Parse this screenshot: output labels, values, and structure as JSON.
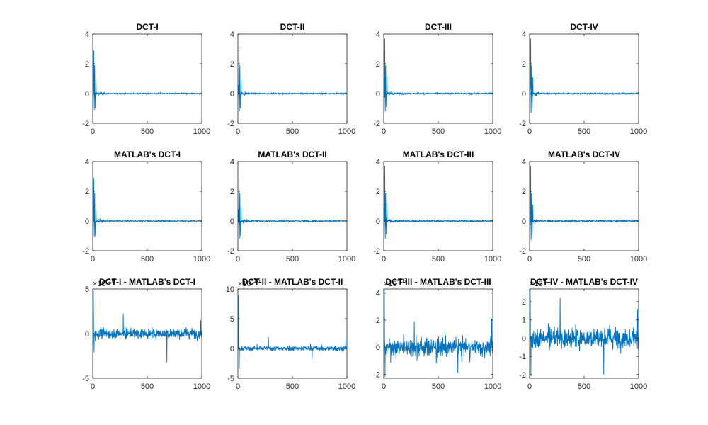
{
  "figure": {
    "background": "#ffffff"
  },
  "colors": {
    "line": "#0072bd",
    "axes": "#262626"
  },
  "chart_data": [
    {
      "type": "line",
      "title": "DCT-I",
      "xlim": [
        0,
        1000
      ],
      "ylim": [
        -2,
        4
      ],
      "xticks": [
        "0",
        "500",
        "1000"
      ],
      "yticks": [
        "-2",
        "0",
        "2",
        "4"
      ],
      "exponent": "",
      "series": [
        {
          "shape": "decay",
          "peak_values": [
            2.9,
            -1.1,
            1.9,
            -1.0,
            0.9
          ],
          "tail_amplitude": 0.05
        }
      ]
    },
    {
      "type": "line",
      "title": "DCT-II",
      "xlim": [
        0,
        1000
      ],
      "ylim": [
        -2,
        4
      ],
      "xticks": [
        "0",
        "500",
        "1000"
      ],
      "yticks": [
        "-2",
        "0",
        "2",
        "4"
      ],
      "exponent": "",
      "series": [
        {
          "shape": "decay",
          "peak_values": [
            2.9,
            -1.2,
            1.9,
            -1.0,
            0.9
          ],
          "tail_amplitude": 0.05
        }
      ]
    },
    {
      "type": "line",
      "title": "DCT-III",
      "xlim": [
        0,
        1000
      ],
      "ylim": [
        -2,
        4
      ],
      "xticks": [
        "0",
        "500",
        "1000"
      ],
      "yticks": [
        "-2",
        "0",
        "2",
        "4"
      ],
      "exponent": "",
      "series": [
        {
          "shape": "decay",
          "peak_values": [
            3.7,
            -1.2,
            1.9,
            -0.9,
            1.2
          ],
          "tail_amplitude": 0.06
        }
      ]
    },
    {
      "type": "line",
      "title": "DCT-IV",
      "xlim": [
        0,
        1000
      ],
      "ylim": [
        -2,
        4
      ],
      "xticks": [
        "0",
        "500",
        "1000"
      ],
      "yticks": [
        "-2",
        "0",
        "2",
        "4"
      ],
      "exponent": "",
      "series": [
        {
          "shape": "decay",
          "peak_values": [
            3.7,
            -1.3,
            1.9,
            -1.0,
            1.1
          ],
          "tail_amplitude": 0.06
        }
      ]
    },
    {
      "type": "line",
      "title": "MATLAB's DCT-I",
      "xlim": [
        0,
        1000
      ],
      "ylim": [
        -2,
        4
      ],
      "xticks": [
        "0",
        "500",
        "1000"
      ],
      "yticks": [
        "-2",
        "0",
        "2",
        "4"
      ],
      "exponent": "",
      "series": [
        {
          "shape": "decay",
          "peak_values": [
            2.9,
            -1.1,
            1.9,
            -1.0,
            0.9
          ],
          "tail_amplitude": 0.05
        }
      ]
    },
    {
      "type": "line",
      "title": "MATLAB's DCT-II",
      "xlim": [
        0,
        1000
      ],
      "ylim": [
        -2,
        4
      ],
      "xticks": [
        "0",
        "500",
        "1000"
      ],
      "yticks": [
        "-2",
        "0",
        "2",
        "4"
      ],
      "exponent": "",
      "series": [
        {
          "shape": "decay",
          "peak_values": [
            2.9,
            -1.2,
            1.9,
            -1.0,
            0.9
          ],
          "tail_amplitude": 0.05
        }
      ]
    },
    {
      "type": "line",
      "title": "MATLAB's DCT-III",
      "xlim": [
        0,
        1000
      ],
      "ylim": [
        -2,
        4
      ],
      "xticks": [
        "0",
        "500",
        "1000"
      ],
      "yticks": [
        "-2",
        "0",
        "2",
        "4"
      ],
      "exponent": "",
      "series": [
        {
          "shape": "decay",
          "peak_values": [
            3.7,
            -1.2,
            1.9,
            -0.9,
            1.2
          ],
          "tail_amplitude": 0.06
        }
      ]
    },
    {
      "type": "line",
      "title": "MATLAB's DCT-IV",
      "xlim": [
        0,
        1000
      ],
      "ylim": [
        -2,
        4
      ],
      "xticks": [
        "0",
        "500",
        "1000"
      ],
      "yticks": [
        "-2",
        "0",
        "2",
        "4"
      ],
      "exponent": "",
      "series": [
        {
          "shape": "decay",
          "peak_values": [
            3.7,
            -1.3,
            1.9,
            -1.0,
            1.1
          ],
          "tail_amplitude": 0.06
        }
      ]
    },
    {
      "type": "line",
      "title": "DCT-I - MATLAB's DCT-I",
      "xlim": [
        0,
        1000
      ],
      "ylim": [
        -5,
        5
      ],
      "xticks": [
        "0",
        "500",
        "1000"
      ],
      "yticks": [
        "-5",
        "0",
        "5"
      ],
      "exponent": "-16",
      "series": [
        {
          "shape": "noise",
          "spike_values": [
            4.8,
            -2.1,
            2.2,
            -3.2,
            1.5
          ],
          "noise_sd": 0.45
        }
      ]
    },
    {
      "type": "line",
      "title": "DCT-II - MATLAB's DCT-II",
      "xlim": [
        0,
        1000
      ],
      "ylim": [
        -5,
        10
      ],
      "xticks": [
        "0",
        "500",
        "1000"
      ],
      "yticks": [
        "-5",
        "0",
        "5",
        "10"
      ],
      "exponent": "-16",
      "series": [
        {
          "shape": "noise",
          "spike_values": [
            9.0,
            -3.4,
            1.9,
            -1.8,
            1.5
          ],
          "noise_sd": 0.35
        }
      ]
    },
    {
      "type": "line",
      "title": "DCT-III - MATLAB's DCT-III",
      "xlim": [
        0,
        1000
      ],
      "ylim": [
        -2.3,
        4.3
      ],
      "xticks": [
        "0",
        "500",
        "1000"
      ],
      "yticks": [
        "-2",
        "0",
        "2",
        "4"
      ],
      "exponent": "-16",
      "series": [
        {
          "shape": "noise",
          "spike_values": [
            4.3,
            -2.2,
            1.9,
            -1.9,
            2.1
          ],
          "noise_sd": 0.55
        }
      ]
    },
    {
      "type": "line",
      "title": "DCT-IV - MATLAB's DCT-IV",
      "xlim": [
        0,
        1000
      ],
      "ylim": [
        -2.2,
        2.7
      ],
      "xticks": [
        "0",
        "500",
        "1000"
      ],
      "yticks": [
        "-2",
        "-1",
        "0",
        "1",
        "2"
      ],
      "exponent": "-15",
      "series": [
        {
          "shape": "noise",
          "spike_values": [
            2.7,
            -2.1,
            2.2,
            -2.0,
            1.6
          ],
          "noise_sd": 0.45
        }
      ]
    }
  ]
}
